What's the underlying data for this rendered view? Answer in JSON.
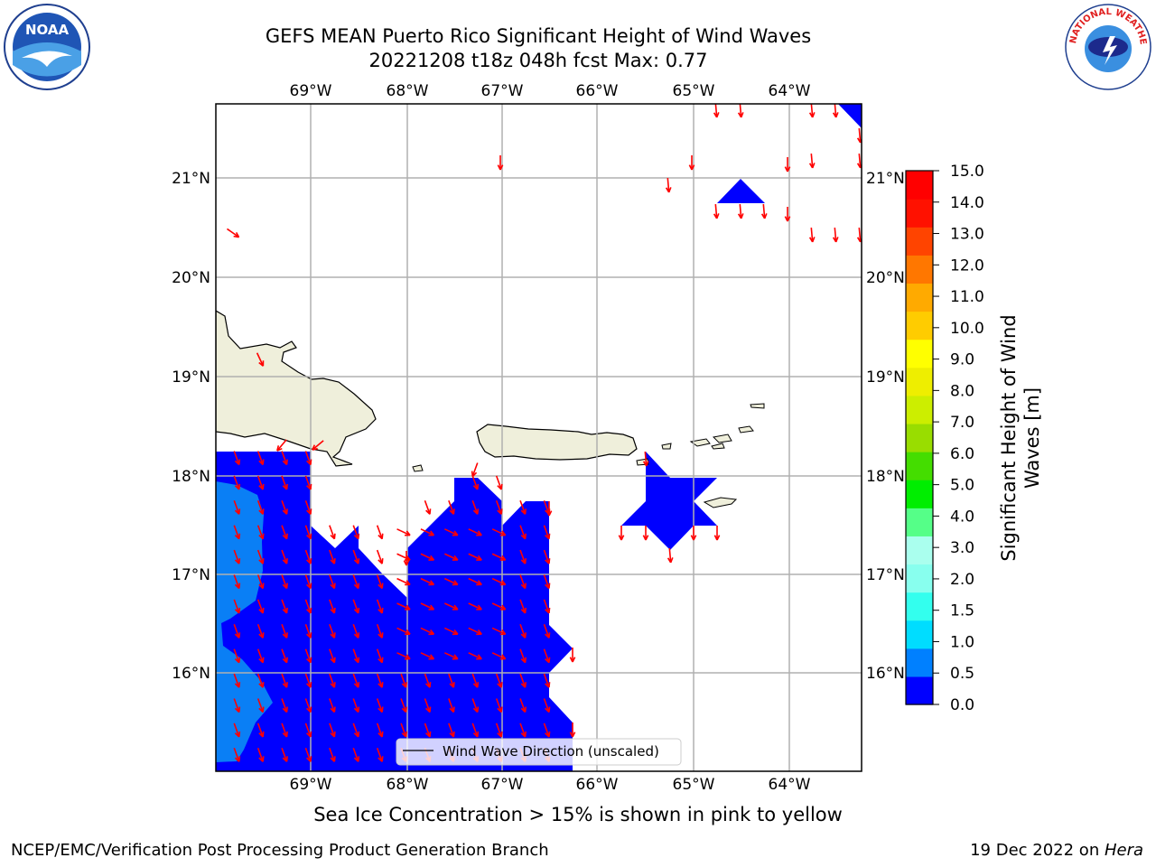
{
  "title_line1": "GEFS MEAN Puerto Rico Significant Height of Wind Waves",
  "title_line2": "20221208 t18z 048h fcst   Max: 0.77",
  "subtitle": "Sea Ice Concentration > 15% is shown in pink to yellow",
  "footer_left": "NCEP/EMC/Verification Post Processing Product Generation Branch",
  "footer_date": "19 Dec 2022 on ",
  "footer_host": "Hera",
  "legend_label": "Wind Wave Direction (unscaled)",
  "colorbar": {
    "label_line1": "Significant Height of Wind",
    "label_line2": "Waves [m]",
    "levels": [
      "0.0",
      "0.5",
      "1.0",
      "1.5",
      "2.0",
      "3.0",
      "4.0",
      "5.0",
      "6.0",
      "7.0",
      "8.0",
      "9.0",
      "10.0",
      "11.0",
      "12.0",
      "13.0",
      "14.0",
      "15.0"
    ],
    "colors": [
      "#0000ff",
      "#0080ff",
      "#00ddff",
      "#33ffee",
      "#88ffee",
      "#aaffee",
      "#55ff88",
      "#00ee00",
      "#44dd00",
      "#99dd00",
      "#ccee00",
      "#eeee00",
      "#ffff00",
      "#ffcc00",
      "#ffaa00",
      "#ff7700",
      "#ff4400",
      "#ff1100",
      "#ff0000"
    ]
  },
  "lon_labels": [
    "69°W",
    "68°W",
    "67°W",
    "66°W",
    "65°W",
    "64°W"
  ],
  "lat_labels": [
    "21°N",
    "20°N",
    "19°N",
    "18°N",
    "17°N",
    "16°N"
  ],
  "arrow_color": "#ff0000",
  "land_color": "#efefdb",
  "logos": {
    "left": "NOAA",
    "right": "NATIONAL WEATHER SERVICE"
  }
}
